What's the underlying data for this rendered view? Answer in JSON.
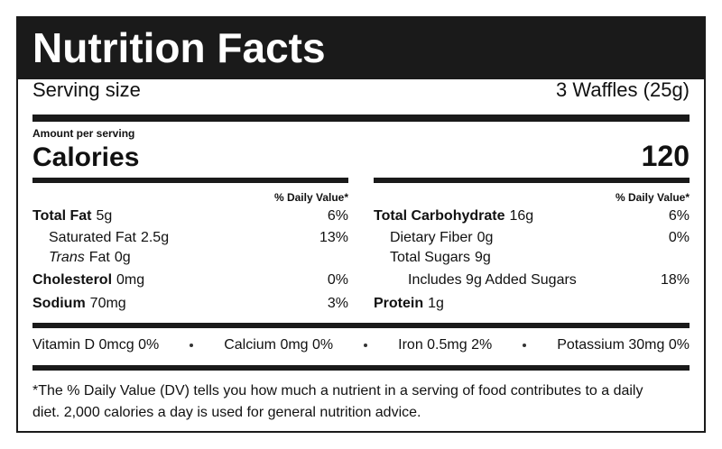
{
  "header": {
    "title": "Nutrition Facts"
  },
  "serving": {
    "label": "Serving size",
    "value": "3 Waffles (25g)"
  },
  "amount_label": "Amount per serving",
  "calories": {
    "label": "Calories",
    "value": "120"
  },
  "left": {
    "dv_header": "% Daily Value*",
    "rows": [
      {
        "name": "Total Fat",
        "amount": "5g",
        "dv": "6%"
      },
      {
        "name": "Saturated Fat",
        "amount": "2.5g",
        "dv": "13%"
      },
      {
        "name_italic": "Trans",
        "name": "Fat",
        "amount": "0g"
      },
      {
        "name": "Cholesterol",
        "amount": "0mg",
        "dv": "0%"
      },
      {
        "name": "Sodium",
        "amount": "70mg",
        "dv": "3%"
      }
    ]
  },
  "right": {
    "dv_header": "% Daily Value*",
    "rows": [
      {
        "name": "Total Carbohydrate",
        "amount": "16g",
        "dv": "6%"
      },
      {
        "name": "Dietary Fiber",
        "amount": "0g",
        "dv": "0%"
      },
      {
        "name": "Total Sugars",
        "amount": "9g"
      },
      {
        "name": "Includes 9g Added Sugars",
        "dv": "18%"
      },
      {
        "name": "Protein",
        "amount": "1g"
      }
    ]
  },
  "vitamins": [
    "Vitamin D 0mcg 0%",
    "Calcium 0mg 0%",
    "Iron 0.5mg 2%",
    "Potassium 30mg 0%"
  ],
  "footnote": {
    "lines": [
      "*The % Daily Value (DV) tells you how much a nutrient in a serving of food contributes to a daily",
      "diet. 2,000 calories a day is used for general nutrition advice."
    ]
  }
}
